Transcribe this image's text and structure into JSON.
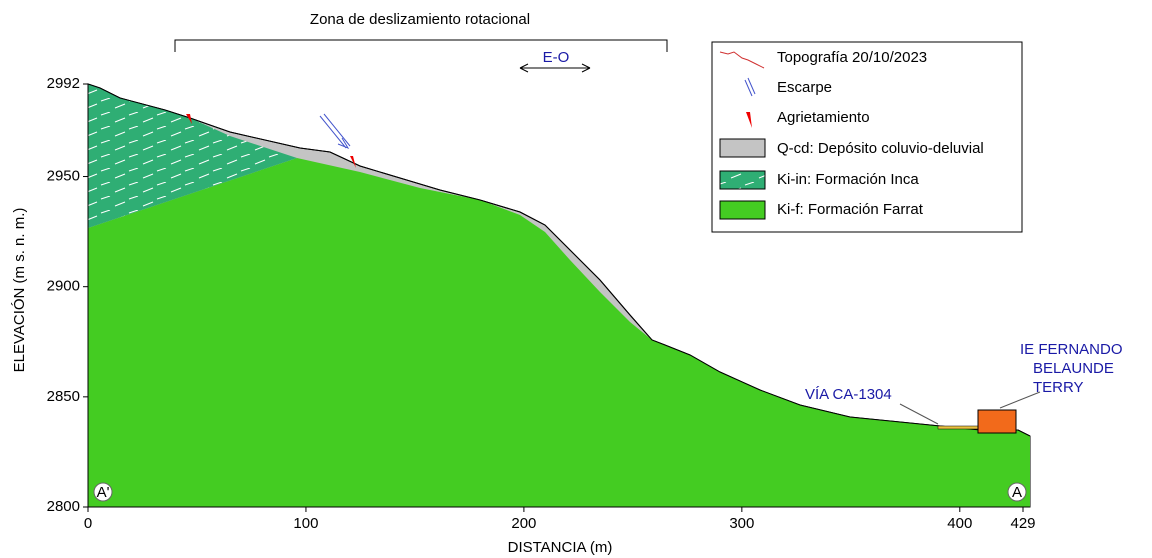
{
  "title": "Zona de deslizamiento rotacional",
  "direction": "E-O",
  "axes": {
    "x_label": "DISTANCIA (m)",
    "y_label": "ELEVACIÓN (m s. n. m.)",
    "xlim": [
      0,
      429
    ],
    "ylim": [
      2800,
      2992
    ],
    "xticks": [
      0,
      100,
      200,
      300,
      400,
      429
    ],
    "yticks": [
      2800,
      2850,
      2900,
      2950,
      2992
    ]
  },
  "legend": [
    "Topografía 20/10/2023",
    "Escarpe",
    "Agrietamiento",
    "Q-cd: Depósito coluvio-deluvial",
    "Ki-in: Formación Inca",
    "Ki-f: Formación Farrat"
  ],
  "annotations": {
    "road": "VÍA CA-1304",
    "school": [
      "IE FERNANDO",
      "BELAUNDE",
      "TERRY"
    ]
  },
  "section_start": "A'",
  "section_end": "A"
}
